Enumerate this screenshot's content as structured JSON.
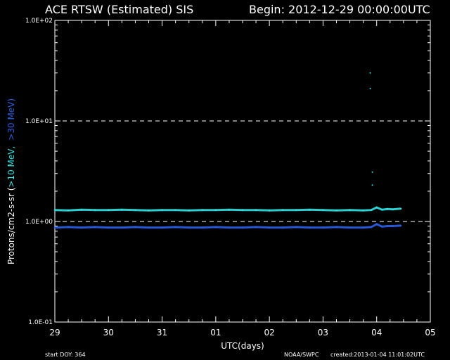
{
  "header": {
    "title": "ACE RTSW (Estimated) SIS",
    "begin": "Begin: 2012-12-29 00:00:00UTC"
  },
  "footer": {
    "start_doy": "start DOY:  364",
    "source": "NOAA/SWPC",
    "created": "created:2013-01-04 11:01:02UTC"
  },
  "colors": {
    "background": "#000000",
    "axis": "#ffffff",
    "series_10mev": "#2ee6e6",
    "series_30mev": "#2a5fe8"
  },
  "chart_data": {
    "type": "line",
    "title": "ACE RTSW (Estimated) SIS",
    "xlabel": "UTC(days)",
    "ylabel_prefix": "Protons/cm2-s-sr   (",
    "ylabel_series": [
      {
        "text": ">10 MeV,",
        "color": "#2ee6e6"
      },
      {
        "text": ">30 MeV)",
        "color": "#2a5fe8"
      }
    ],
    "y_scale": "log",
    "ylim": [
      0.1,
      100
    ],
    "y_ticks": [
      {
        "value": 0.1,
        "label": "1.0E-01"
      },
      {
        "value": 1,
        "label": "1.0E+00"
      },
      {
        "value": 10,
        "label": "1.0E+01"
      },
      {
        "value": 100,
        "label": "1.0E+02"
      }
    ],
    "y_reference_lines": [
      1,
      10
    ],
    "xlim": [
      0,
      7
    ],
    "x_ticks": [
      {
        "value": 0,
        "label": "29"
      },
      {
        "value": 1,
        "label": "30"
      },
      {
        "value": 2,
        "label": "31"
      },
      {
        "value": 3,
        "label": "01"
      },
      {
        "value": 4,
        "label": "02"
      },
      {
        "value": 5,
        "label": "03"
      },
      {
        "value": 6,
        "label": "04"
      },
      {
        "value": 7,
        "label": "05"
      }
    ],
    "series": [
      {
        "color": "#2ee6e6",
        "x": [
          0,
          0.25,
          0.5,
          0.75,
          1.0,
          1.25,
          1.5,
          1.75,
          2.0,
          2.25,
          2.5,
          2.75,
          3.0,
          3.25,
          3.5,
          3.75,
          4.0,
          4.25,
          4.5,
          4.75,
          5.0,
          5.25,
          5.5,
          5.75,
          5.9,
          6.0,
          6.1,
          6.2,
          6.3,
          6.45
        ],
        "y": [
          1.3,
          1.29,
          1.31,
          1.3,
          1.3,
          1.31,
          1.3,
          1.29,
          1.3,
          1.3,
          1.29,
          1.3,
          1.3,
          1.31,
          1.3,
          1.3,
          1.29,
          1.3,
          1.3,
          1.31,
          1.3,
          1.29,
          1.3,
          1.29,
          1.3,
          1.38,
          1.31,
          1.33,
          1.32,
          1.34
        ]
      },
      {
        "color": "#2a5fe8",
        "x": [
          0,
          0.25,
          0.5,
          0.75,
          1.0,
          1.25,
          1.5,
          1.75,
          2.0,
          2.25,
          2.5,
          2.75,
          3.0,
          3.25,
          3.5,
          3.75,
          4.0,
          4.25,
          4.5,
          4.75,
          5.0,
          5.25,
          5.5,
          5.75,
          5.9,
          6.0,
          6.1,
          6.2,
          6.3,
          6.45
        ],
        "y": [
          0.87,
          0.88,
          0.87,
          0.88,
          0.87,
          0.87,
          0.88,
          0.87,
          0.87,
          0.88,
          0.87,
          0.87,
          0.88,
          0.87,
          0.87,
          0.88,
          0.87,
          0.87,
          0.88,
          0.87,
          0.87,
          0.88,
          0.87,
          0.87,
          0.88,
          0.94,
          0.89,
          0.9,
          0.9,
          0.91
        ]
      }
    ],
    "sparse_points": [
      {
        "x": 5.88,
        "y": 30
      },
      {
        "x": 5.88,
        "y": 21
      },
      {
        "x": 5.92,
        "y": 3.1
      },
      {
        "x": 5.92,
        "y": 2.3
      }
    ]
  }
}
